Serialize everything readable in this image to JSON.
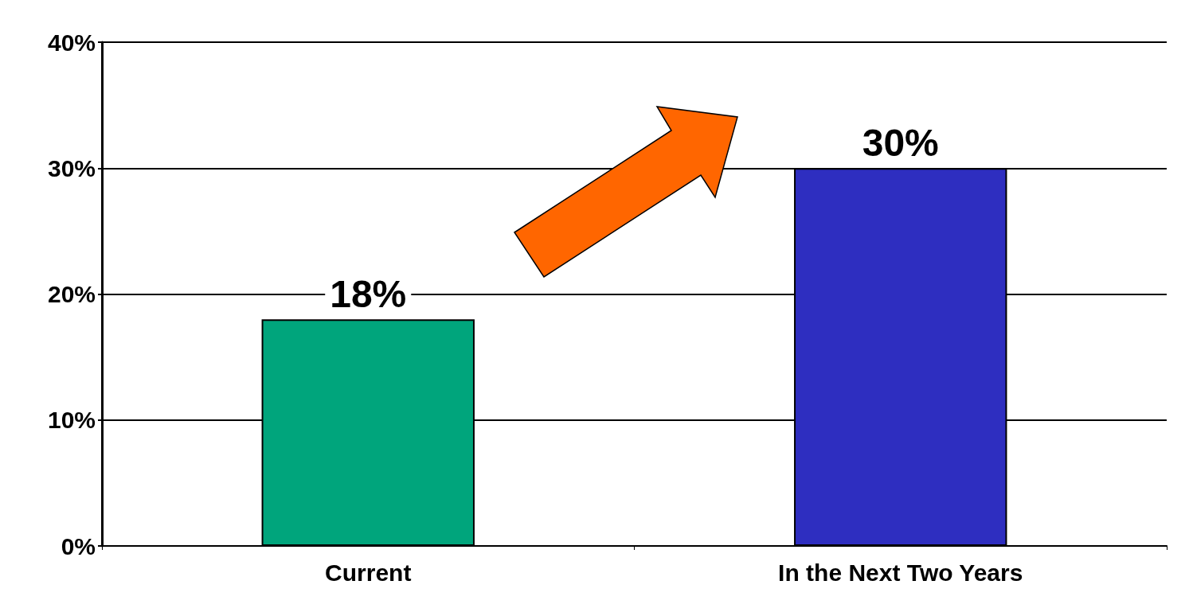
{
  "chart_data": {
    "type": "bar",
    "categories": [
      "Current",
      "In the Next Two Years"
    ],
    "values": [
      18,
      30
    ],
    "colors": [
      "#00a57c",
      "#2e2ec0"
    ],
    "value_labels": [
      "18%",
      "30%"
    ],
    "ylim": [
      0,
      40
    ],
    "yticks": [
      {
        "value": 0,
        "label": "0%"
      },
      {
        "value": 10,
        "label": "10%"
      },
      {
        "value": 20,
        "label": "20%"
      },
      {
        "value": 30,
        "label": "30%"
      },
      {
        "value": 40,
        "label": "40%"
      }
    ],
    "grid": "y"
  }
}
